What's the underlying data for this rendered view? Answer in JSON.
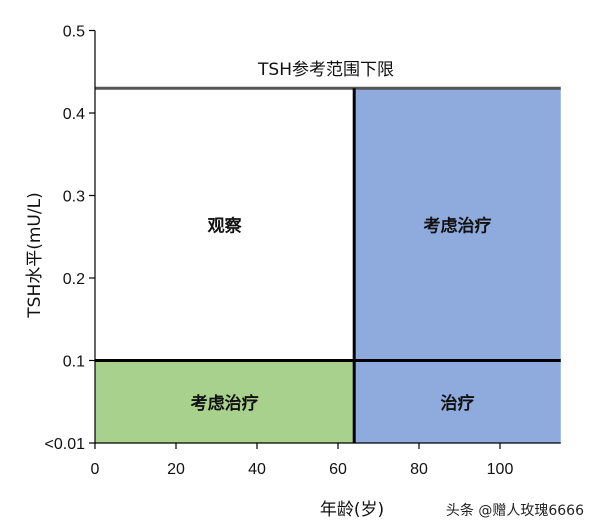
{
  "chart_data": {
    "type": "area",
    "title": "",
    "xlabel": "年龄(岁)",
    "ylabel": "TSH水平(mU/L)",
    "xlim": [
      0,
      115
    ],
    "x_ticks": [
      0,
      20,
      40,
      60,
      80,
      100
    ],
    "y_tick_values": [
      0,
      0.1,
      0.2,
      0.3,
      0.4,
      0.5
    ],
    "y_tick_labels": [
      "<0.01",
      "0.1",
      "0.2",
      "0.3",
      "0.4",
      "0.5"
    ],
    "grid": false,
    "reference_line": {
      "label": "TSH参考范围下限",
      "y": 0.43
    },
    "regions": [
      {
        "label": "观察",
        "x_range": [
          0,
          64
        ],
        "y_range": [
          0.1,
          0.43
        ],
        "color": "#ffffff"
      },
      {
        "label": "考虑治疗",
        "x_range": [
          64,
          115
        ],
        "y_range": [
          0.1,
          0.43
        ],
        "color": "#8faadc"
      },
      {
        "label": "考虑治疗",
        "x_range": [
          0,
          64
        ],
        "y_range": [
          0,
          0.1
        ],
        "color": "#a9d18e"
      },
      {
        "label": "治疗",
        "x_range": [
          64,
          115
        ],
        "y_range": [
          0,
          0.1
        ],
        "color": "#8faadc"
      }
    ]
  },
  "watermark": "头条 @赠人玫瑰6666"
}
